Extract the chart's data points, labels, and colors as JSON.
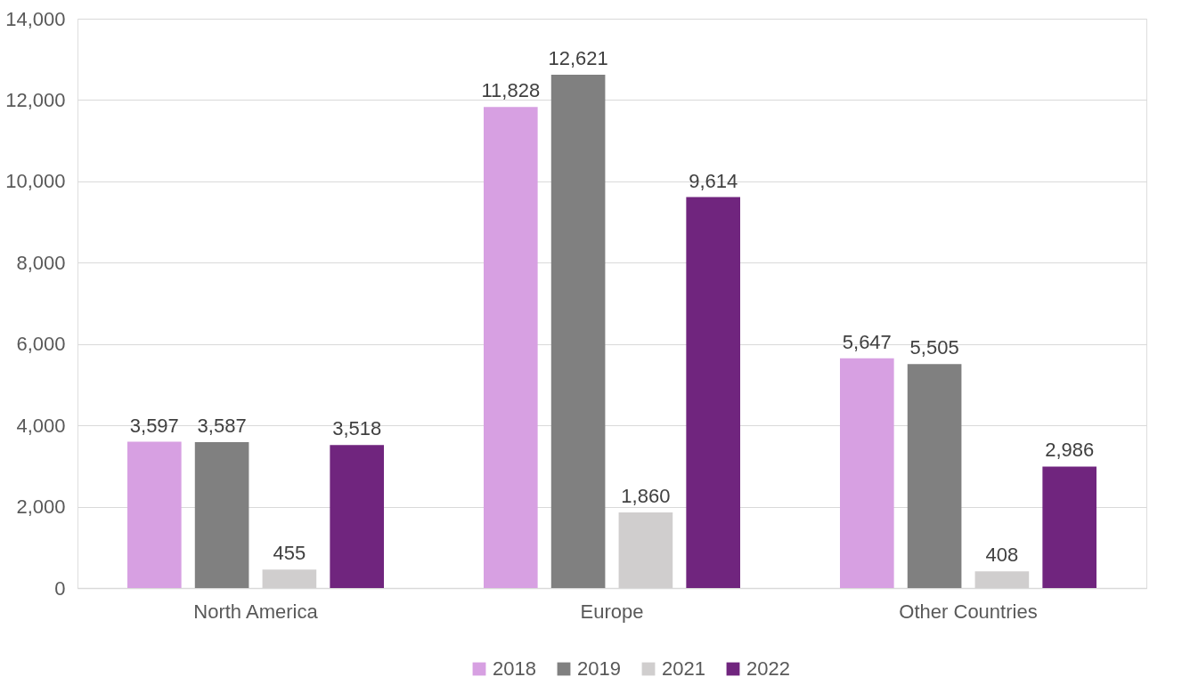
{
  "chart_data": {
    "type": "bar",
    "categories": [
      "North America",
      "Europe",
      "Other Countries"
    ],
    "series": [
      {
        "name": "2018",
        "color": "#d7a0e2",
        "values": [
          3597,
          11828,
          5647
        ],
        "value_labels": [
          "3,597",
          "11,828",
          "5,647"
        ]
      },
      {
        "name": "2019",
        "color": "#808080",
        "values": [
          3587,
          12621,
          5505
        ],
        "value_labels": [
          "3,587",
          "12,621",
          "5,505"
        ]
      },
      {
        "name": "2021",
        "color": "#d0cece",
        "values": [
          455,
          1860,
          408
        ],
        "value_labels": [
          "455",
          "1,860",
          "408"
        ]
      },
      {
        "name": "2022",
        "color": "#70257e",
        "values": [
          3518,
          9614,
          2986
        ],
        "value_labels": [
          "3,518",
          "9,614",
          "2,986"
        ]
      }
    ],
    "ylim": [
      0,
      14000
    ],
    "yticks": [
      {
        "value": 0,
        "label": "0"
      },
      {
        "value": 2000,
        "label": "2,000"
      },
      {
        "value": 4000,
        "label": "4,000"
      },
      {
        "value": 6000,
        "label": "6,000"
      },
      {
        "value": 8000,
        "label": "8,000"
      },
      {
        "value": 10000,
        "label": "10,000"
      },
      {
        "value": 12000,
        "label": "12,000"
      },
      {
        "value": 14000,
        "label": "14,000"
      }
    ],
    "grid": "y",
    "legend": "bottom"
  }
}
